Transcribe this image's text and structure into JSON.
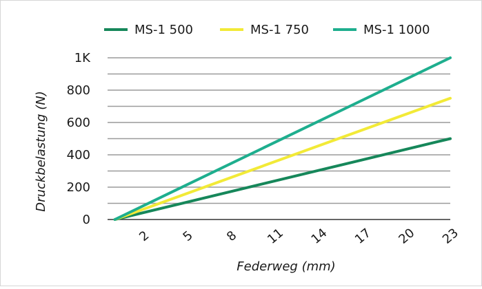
{
  "chart_data": {
    "type": "line",
    "xlabel": "Federweg (mm)",
    "ylabel": "Druckbelastung (N)",
    "xlim": [
      0,
      23
    ],
    "ylim": [
      0,
      1000
    ],
    "x_ticks": [
      "2",
      "5",
      "8",
      "11",
      "14",
      "17",
      "20",
      "23"
    ],
    "y_ticks": [
      "0",
      "200",
      "400",
      "600",
      "800",
      "1K"
    ],
    "grid": "horizontal",
    "legend": "top",
    "series": [
      {
        "name": "MS-1 500",
        "color": "#16875a",
        "x": [
          0,
          23
        ],
        "y": [
          0,
          500
        ]
      },
      {
        "name": "MS-1 750",
        "color": "#f2ea37",
        "x": [
          0,
          23
        ],
        "y": [
          0,
          750
        ]
      },
      {
        "name": "MS-1 1000",
        "color": "#1eae8e",
        "x": [
          0,
          23
        ],
        "y": [
          0,
          1000
        ]
      }
    ]
  }
}
